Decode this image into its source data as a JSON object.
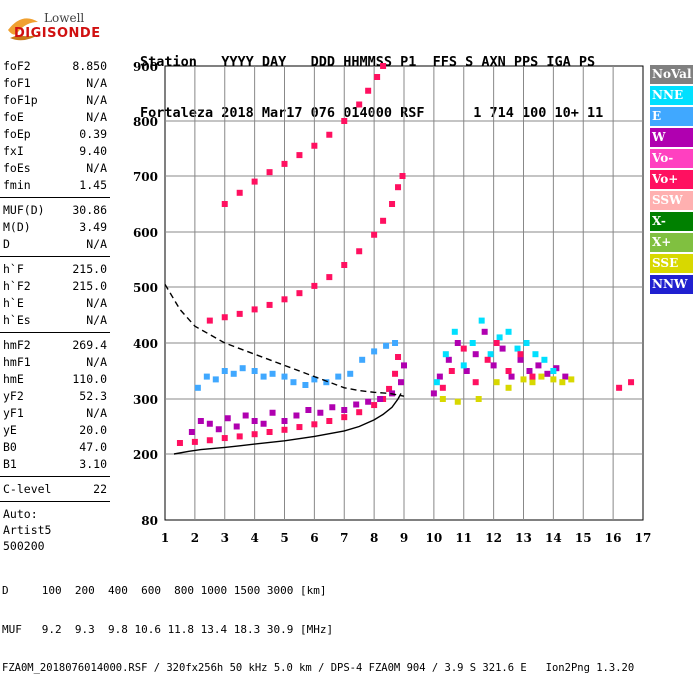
{
  "logo": {
    "line1": "Lowell",
    "line2": "DIGISONDE"
  },
  "header": {
    "line1": "Station   YYYY DAY   DDD HHMMSS P1  FFS S AXN PPS IGA PS",
    "line2": "Fortaleza 2018 Mar17 076 014000 RSF      1 714 100 10+ 11"
  },
  "params": {
    "group1": [
      {
        "label": "foF2",
        "value": "8.850"
      },
      {
        "label": "foF1",
        "value": "N/A"
      },
      {
        "label": "foF1p",
        "value": "N/A"
      },
      {
        "label": "foE",
        "value": "N/A"
      },
      {
        "label": "foEp",
        "value": "0.39"
      },
      {
        "label": "fxI",
        "value": "9.40"
      },
      {
        "label": "foEs",
        "value": "N/A"
      },
      {
        "label": "fmin",
        "value": "1.45"
      }
    ],
    "group2": [
      {
        "label": "MUF(D)",
        "value": "30.86"
      },
      {
        "label": "M(D)",
        "value": "3.49"
      },
      {
        "label": "D",
        "value": "N/A"
      }
    ],
    "group3": [
      {
        "label": "h`F",
        "value": "215.0"
      },
      {
        "label": "h`F2",
        "value": "215.0"
      },
      {
        "label": "h`E",
        "value": "N/A"
      },
      {
        "label": "h`Es",
        "value": "N/A"
      }
    ],
    "group4": [
      {
        "label": "hmF2",
        "value": "269.4"
      },
      {
        "label": "hmF1",
        "value": "N/A"
      },
      {
        "label": "hmE",
        "value": "110.0"
      },
      {
        "label": "yF2",
        "value": "52.3"
      },
      {
        "label": "yF1",
        "value": "N/A"
      },
      {
        "label": "yE",
        "value": "20.0"
      },
      {
        "label": "B0",
        "value": "47.0"
      },
      {
        "label": "B1",
        "value": "3.10"
      }
    ],
    "group5": [
      {
        "label": "C-level",
        "value": "22"
      }
    ],
    "auto": [
      "Auto:",
      "Artist5",
      "500200"
    ]
  },
  "legend": [
    {
      "label": "NoVal",
      "color": "#808080"
    },
    {
      "label": "NNE",
      "color": "#00e0ff"
    },
    {
      "label": "E",
      "color": "#40a8ff"
    },
    {
      "label": "W",
      "color": "#b000b0"
    },
    {
      "label": "Vo-",
      "color": "#ff40c0"
    },
    {
      "label": "Vo+",
      "color": "#ff1060"
    },
    {
      "label": "SSW",
      "color": "#ffb0b0"
    },
    {
      "label": "X-",
      "color": "#008000"
    },
    {
      "label": "X+",
      "color": "#80c040"
    },
    {
      "label": "SSE",
      "color": "#d8d800"
    },
    {
      "label": "NNW",
      "color": "#2020d0"
    }
  ],
  "footer": {
    "line1": "D     100  200  400  600  800 1000 1500 3000 [km]",
    "line2": "MUF   9.2  9.3  9.8 10.6 11.8 13.4 18.3 30.9 [MHz]",
    "line3": "FZA0M_2018076014000.RSF / 320fx256h 50 kHz 5.0 km / DPS-4 FZA0M 904 / 3.9 S 321.6 E   Ion2Png 1.3.20"
  },
  "chart_data": {
    "type": "scatter",
    "xlim": [
      1,
      17
    ],
    "ylim": [
      80,
      900
    ],
    "x_ticks": [
      "1",
      "2",
      "3",
      "4",
      "5",
      "6",
      "7",
      "8",
      "9",
      "10",
      "11",
      "12",
      "13",
      "14",
      "15",
      "16",
      "17"
    ],
    "y_ticks": [
      "80",
      "200",
      "300",
      "400",
      "500",
      "600",
      "700",
      "800",
      "900"
    ],
    "grid": true,
    "series": [
      {
        "color": "#ff1060",
        "points": [
          [
            1.5,
            220
          ],
          [
            2,
            222
          ],
          [
            2.5,
            225
          ],
          [
            3,
            229
          ],
          [
            3.5,
            232
          ],
          [
            4,
            236
          ],
          [
            4.5,
            240
          ],
          [
            5,
            244
          ],
          [
            5.5,
            249
          ],
          [
            6,
            254
          ],
          [
            6.5,
            260
          ],
          [
            7,
            267
          ],
          [
            7.5,
            276
          ],
          [
            8,
            289
          ],
          [
            8.3,
            300
          ],
          [
            8.5,
            318
          ],
          [
            8.7,
            345
          ],
          [
            8.8,
            375
          ]
        ]
      },
      {
        "color": "#ff1060",
        "points": [
          [
            2.5,
            440
          ],
          [
            3,
            446
          ],
          [
            3.5,
            452
          ],
          [
            4,
            460
          ],
          [
            4.5,
            468
          ],
          [
            5,
            478
          ],
          [
            5.5,
            489
          ],
          [
            6,
            502
          ],
          [
            6.5,
            518
          ],
          [
            7,
            540
          ],
          [
            7.5,
            565
          ],
          [
            8,
            595
          ],
          [
            8.3,
            620
          ],
          [
            8.6,
            650
          ],
          [
            8.8,
            680
          ],
          [
            8.95,
            700
          ]
        ]
      },
      {
        "color": "#ff1060",
        "points": [
          [
            3,
            650
          ],
          [
            3.5,
            670
          ],
          [
            4,
            690
          ],
          [
            4.5,
            707
          ],
          [
            5,
            722
          ],
          [
            5.5,
            738
          ],
          [
            6,
            755
          ],
          [
            6.5,
            775
          ],
          [
            7,
            800
          ],
          [
            7.5,
            830
          ],
          [
            7.8,
            855
          ],
          [
            8.1,
            880
          ],
          [
            8.3,
            900
          ]
        ]
      },
      {
        "color": "#b000b0",
        "points": [
          [
            1.9,
            240
          ],
          [
            2.2,
            260
          ],
          [
            2.5,
            255
          ],
          [
            2.8,
            245
          ],
          [
            3.1,
            265
          ],
          [
            3.4,
            250
          ],
          [
            3.7,
            270
          ],
          [
            4,
            260
          ],
          [
            4.3,
            255
          ],
          [
            4.6,
            275
          ],
          [
            5,
            260
          ],
          [
            5.4,
            270
          ],
          [
            5.8,
            280
          ],
          [
            6.2,
            275
          ],
          [
            6.6,
            285
          ],
          [
            7,
            280
          ],
          [
            7.4,
            290
          ],
          [
            7.8,
            295
          ],
          [
            8.2,
            300
          ],
          [
            8.6,
            310
          ],
          [
            8.9,
            330
          ],
          [
            9,
            360
          ]
        ]
      },
      {
        "color": "#40a8ff",
        "points": [
          [
            2.1,
            320
          ],
          [
            2.4,
            340
          ],
          [
            2.7,
            335
          ],
          [
            3,
            350
          ],
          [
            3.3,
            345
          ],
          [
            3.6,
            355
          ],
          [
            4,
            350
          ],
          [
            4.3,
            340
          ],
          [
            4.6,
            345
          ],
          [
            5,
            340
          ],
          [
            5.3,
            330
          ],
          [
            5.7,
            325
          ],
          [
            6,
            335
          ],
          [
            6.4,
            330
          ],
          [
            6.8,
            340
          ],
          [
            7.2,
            345
          ],
          [
            7.6,
            370
          ],
          [
            8,
            385
          ],
          [
            8.4,
            395
          ],
          [
            8.7,
            400
          ]
        ]
      },
      {
        "color": "#b000b0",
        "points": [
          [
            10,
            310
          ],
          [
            10.2,
            340
          ],
          [
            10.5,
            370
          ],
          [
            10.8,
            400
          ],
          [
            11.1,
            350
          ],
          [
            11.4,
            380
          ],
          [
            11.7,
            420
          ],
          [
            12,
            360
          ],
          [
            12.3,
            390
          ],
          [
            12.6,
            340
          ],
          [
            12.9,
            370
          ],
          [
            13.2,
            350
          ],
          [
            13.5,
            360
          ],
          [
            13.8,
            345
          ],
          [
            14.1,
            355
          ],
          [
            14.4,
            340
          ]
        ]
      },
      {
        "color": "#00e0ff",
        "points": [
          [
            10.1,
            330
          ],
          [
            10.4,
            380
          ],
          [
            10.7,
            420
          ],
          [
            11,
            360
          ],
          [
            11.3,
            400
          ],
          [
            11.6,
            440
          ],
          [
            11.9,
            380
          ],
          [
            12.2,
            410
          ],
          [
            12.5,
            420
          ],
          [
            12.8,
            390
          ],
          [
            13.1,
            400
          ],
          [
            13.4,
            380
          ],
          [
            13.7,
            370
          ],
          [
            14,
            350
          ]
        ]
      },
      {
        "color": "#d8d800",
        "points": [
          [
            10.3,
            300
          ],
          [
            10.8,
            295
          ],
          [
            11.5,
            300
          ],
          [
            12.1,
            330
          ],
          [
            12.5,
            320
          ],
          [
            13,
            335
          ],
          [
            13.3,
            330
          ],
          [
            13.6,
            340
          ],
          [
            14,
            335
          ],
          [
            14.3,
            330
          ],
          [
            14.6,
            335
          ]
        ]
      },
      {
        "color": "#ff1060",
        "points": [
          [
            10.3,
            320
          ],
          [
            10.6,
            350
          ],
          [
            11,
            390
          ],
          [
            11.4,
            330
          ],
          [
            11.8,
            370
          ],
          [
            12.1,
            400
          ],
          [
            12.5,
            350
          ],
          [
            12.9,
            380
          ],
          [
            13.3,
            340
          ],
          [
            16.2,
            320
          ],
          [
            16.6,
            330
          ]
        ]
      }
    ],
    "curves": [
      {
        "style": "solid",
        "points": [
          [
            1.3,
            200
          ],
          [
            1.8,
            205
          ],
          [
            2.2,
            208
          ],
          [
            3,
            212
          ],
          [
            3.5,
            215
          ],
          [
            4,
            218
          ],
          [
            5,
            224
          ],
          [
            6,
            232
          ],
          [
            7,
            242
          ],
          [
            7.5,
            250
          ],
          [
            8,
            262
          ],
          [
            8.3,
            272
          ],
          [
            8.6,
            285
          ],
          [
            8.8,
            300
          ],
          [
            8.9,
            310
          ]
        ]
      },
      {
        "style": "dashed",
        "points": [
          [
            1,
            505
          ],
          [
            1.5,
            460
          ],
          [
            2,
            430
          ],
          [
            3,
            400
          ],
          [
            4,
            380
          ],
          [
            5,
            360
          ],
          [
            6,
            340
          ],
          [
            7,
            320
          ],
          [
            7.5,
            315
          ],
          [
            8,
            312
          ],
          [
            8.5,
            310
          ],
          [
            9,
            305
          ]
        ]
      }
    ]
  }
}
